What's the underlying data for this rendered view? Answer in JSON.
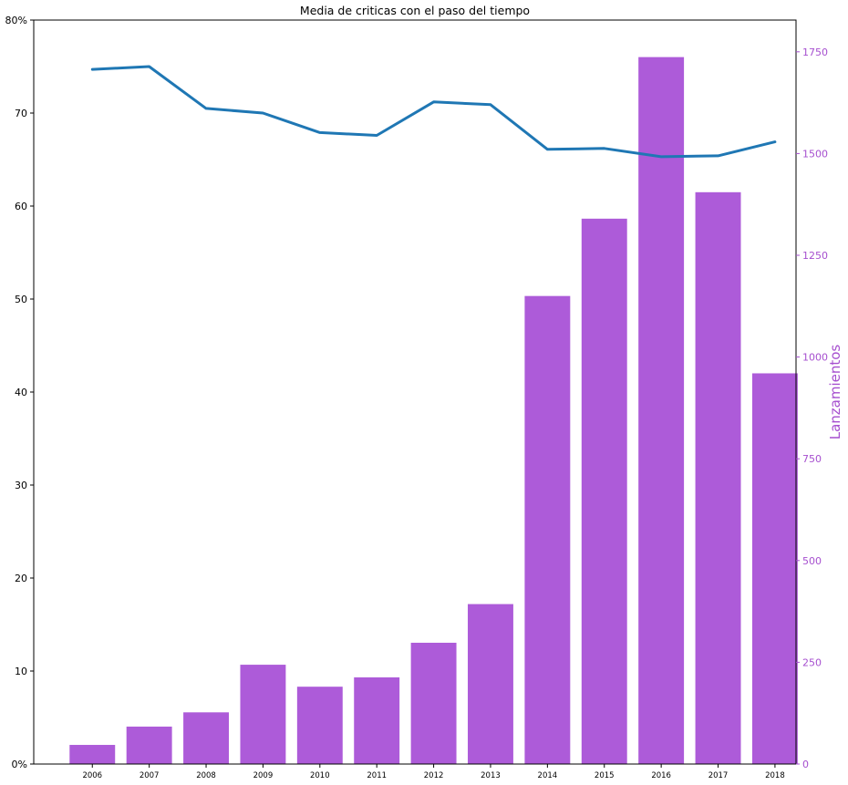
{
  "chart_data": {
    "type": "bar",
    "title": "Media de criticas con el paso del tiempo",
    "categories": [
      "2006",
      "2007",
      "2008",
      "2009",
      "2010",
      "2011",
      "2012",
      "2013",
      "2014",
      "2015",
      "2016",
      "2017",
      "2018"
    ],
    "series": [
      {
        "type": "bar",
        "axis": "right",
        "color": "#ad5bd9",
        "values": [
          47,
          92,
          127,
          244,
          190,
          213,
          298,
          393,
          1150,
          1340,
          1737,
          1405,
          960
        ]
      },
      {
        "type": "line",
        "axis": "left",
        "color": "#1f77b4",
        "values": [
          74.7,
          75.0,
          70.5,
          70.0,
          67.9,
          67.6,
          71.2,
          70.9,
          66.1,
          66.2,
          65.3,
          65.4,
          66.9
        ]
      }
    ],
    "y_left": {
      "ylim": [
        0,
        80
      ],
      "ticks": [
        0,
        10,
        20,
        30,
        40,
        50,
        60,
        70,
        80
      ],
      "tick_labels": [
        "0%",
        "10",
        "20",
        "30",
        "40",
        "50",
        "60",
        "70",
        "80%"
      ]
    },
    "y_right": {
      "label": "Lanzamientos",
      "ylim": [
        0,
        1828
      ],
      "ticks": [
        0,
        250,
        500,
        750,
        1000,
        1250,
        1500,
        1750
      ],
      "tick_labels": [
        "0",
        "250",
        "500",
        "750",
        "1000",
        "1250",
        "1500",
        "1750"
      ],
      "color": "#a64fcf"
    },
    "grid": false,
    "legend": "none"
  }
}
